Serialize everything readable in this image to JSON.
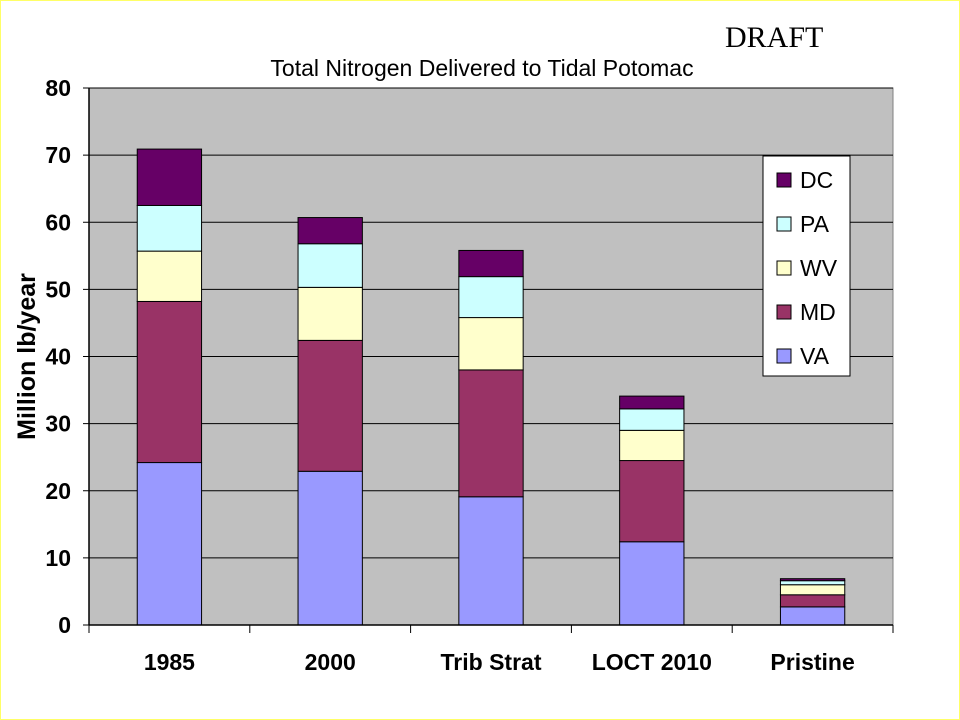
{
  "watermark": "DRAFT",
  "chart_data": {
    "type": "bar",
    "stacked": true,
    "title": "Total Nitrogen Delivered to Tidal Potomac",
    "xlabel": "",
    "ylabel": "Million lb/year",
    "ylim": [
      0,
      80
    ],
    "yticks": [
      0,
      10,
      20,
      30,
      40,
      50,
      60,
      70,
      80
    ],
    "grid": true,
    "legend_position": "right",
    "categories": [
      "1985",
      "2000",
      "Trib Strat",
      "LOCT 2010",
      "Pristine"
    ],
    "series": [
      {
        "name": "VA",
        "color": "#9999ff",
        "values": [
          24.2,
          22.9,
          19.1,
          12.4,
          2.7
        ]
      },
      {
        "name": "MD",
        "color": "#993366",
        "values": [
          24.0,
          19.5,
          18.9,
          12.1,
          1.8
        ]
      },
      {
        "name": "WV",
        "color": "#ffffcc",
        "values": [
          7.5,
          7.9,
          7.8,
          4.5,
          1.5
        ]
      },
      {
        "name": "PA",
        "color": "#ccffff",
        "values": [
          6.8,
          6.5,
          6.1,
          3.2,
          0.6
        ]
      },
      {
        "name": "DC",
        "color": "#660066",
        "values": [
          8.4,
          3.9,
          3.9,
          1.9,
          0.3
        ]
      }
    ],
    "legend_order": [
      "DC",
      "PA",
      "WV",
      "MD",
      "VA"
    ],
    "plot_background": "#c0c0c0"
  }
}
